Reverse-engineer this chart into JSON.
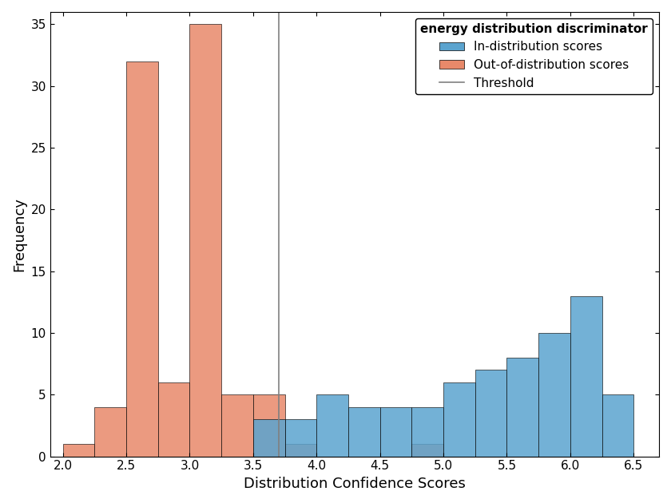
{
  "legend_title": "energy distribution discriminator",
  "xlabel": "Distribution Confidence Scores",
  "ylabel": "Frequency",
  "xlim": [
    1.9,
    6.7
  ],
  "ylim": [
    0,
    36
  ],
  "threshold": 3.7,
  "bin_edges": [
    2.0,
    2.25,
    2.5,
    2.75,
    3.0,
    3.25,
    3.5,
    3.75,
    4.0,
    4.25,
    4.5,
    4.75,
    5.0,
    5.25,
    5.5,
    5.75,
    6.0,
    6.25,
    6.5
  ],
  "in_dist_counts": [
    0,
    0,
    0,
    0,
    0,
    0,
    3,
    3,
    5,
    4,
    4,
    4,
    6,
    7,
    8,
    10,
    13,
    5
  ],
  "out_dist_counts": [
    1,
    4,
    32,
    6,
    35,
    5,
    5,
    1,
    0,
    0,
    0,
    1,
    0,
    0,
    0,
    0,
    0,
    0
  ],
  "in_color": "#5BA4CF",
  "out_color": "#E8896A",
  "threshold_color": "#808080",
  "xticks": [
    2.0,
    2.5,
    3.0,
    3.5,
    4.0,
    4.5,
    5.0,
    5.5,
    6.0,
    6.5
  ],
  "yticks": [
    0,
    5,
    10,
    15,
    20,
    25,
    30,
    35
  ],
  "legend_labels": [
    "In-distribution scores",
    "Out-of-distribution scores",
    "Threshold"
  ]
}
